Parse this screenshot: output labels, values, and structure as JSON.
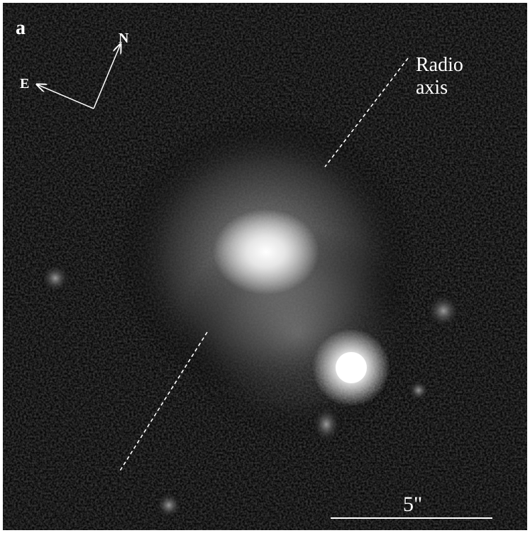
{
  "panel_label": "a",
  "compass": {
    "north": "N",
    "east": "E"
  },
  "annotation": {
    "lines": [
      "Radio",
      "axis"
    ]
  },
  "scale_bar": {
    "label": "5\""
  }
}
